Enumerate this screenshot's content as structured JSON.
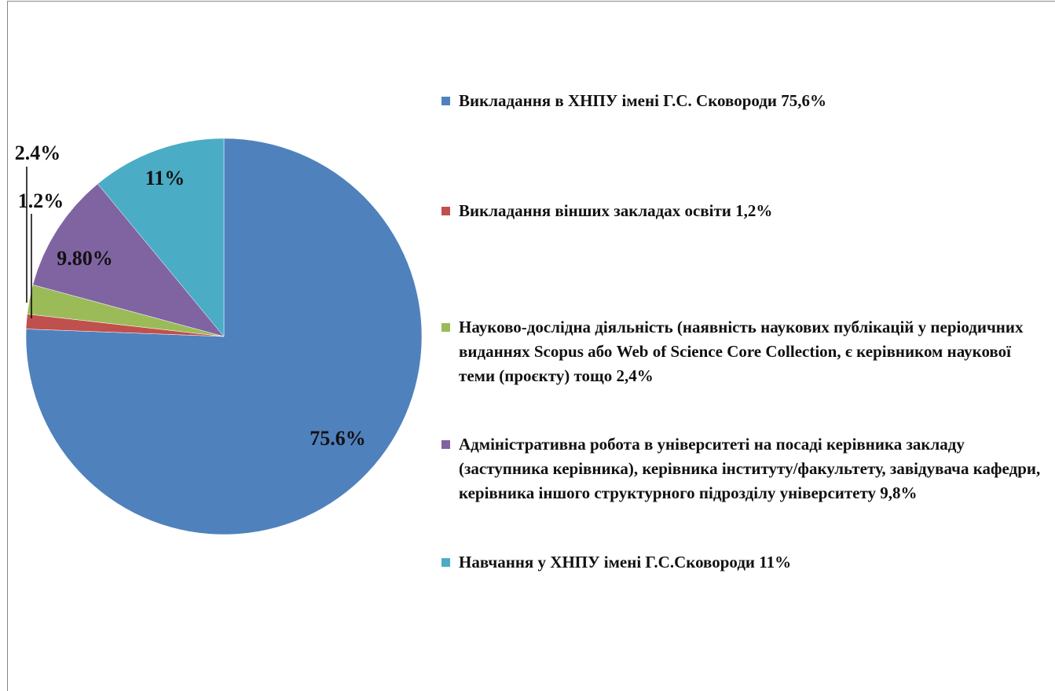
{
  "chart_data": {
    "type": "pie",
    "categories": [
      "Викладання в ХНПУ імені Г.С. Сковороди 75,6%",
      "Викладання вінших закладах освіти 1,2%",
      "Науково-дослідна діяльність (наявність наукових публікацій у періодичних виданнях Scopus або Web of Science Core Collection, є керівником наукової теми (проєкту) тощо 2,4%",
      "Адміністративна робота в університеті на посаді керівника закладу (заступника керівника), керівника інституту/факультету, завідувача кафедри, керівника іншого структурного підрозділу університету 9,8%",
      "Навчання у ХНПУ імені Г.С.Сковороди 11%"
    ],
    "values": [
      75.6,
      1.2,
      2.4,
      9.8,
      11
    ],
    "value_labels": [
      "75.6%",
      "1.2%",
      "2.4%",
      "9.80%",
      "11%"
    ],
    "colors": [
      "#4f81bd",
      "#c0504d",
      "#9bbb59",
      "#8064a2",
      "#4bacc6"
    ],
    "legend": "right"
  }
}
